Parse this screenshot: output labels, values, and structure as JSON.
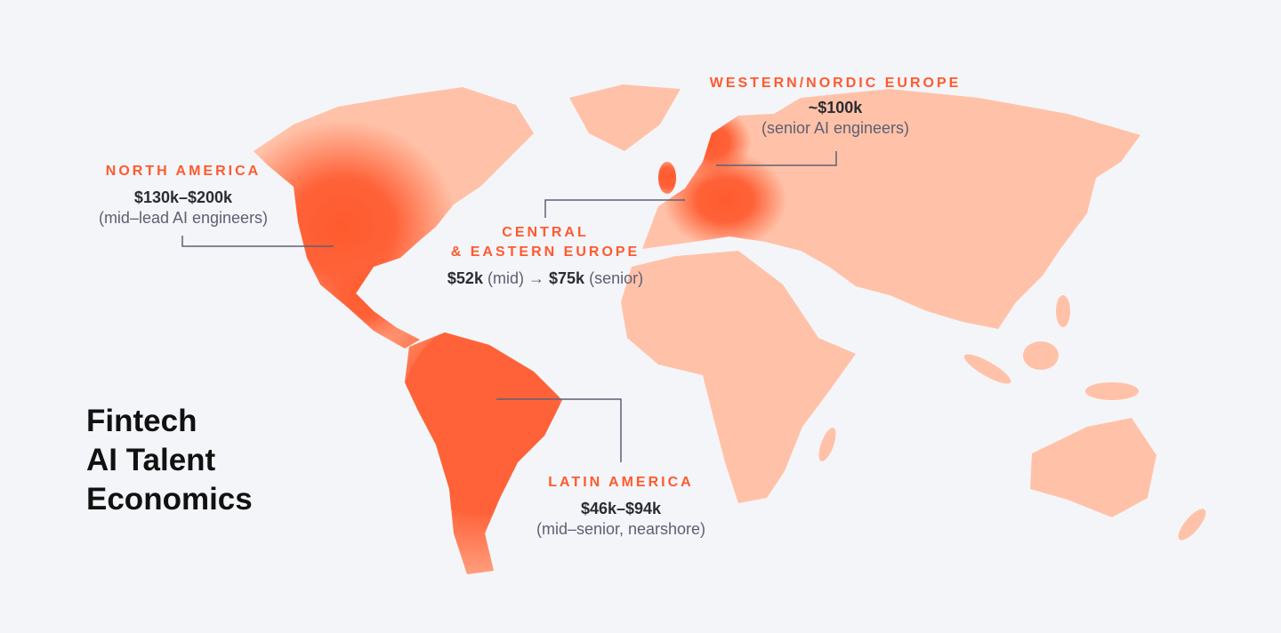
{
  "title": {
    "lines": [
      "Fintech",
      "AI Talent",
      "Economics"
    ]
  },
  "colors": {
    "background": "#f4f5f9",
    "land": "#ffc2a8",
    "highlight": "#ff6238",
    "label": "#ff5a2e",
    "leader_line": "#5e6072"
  },
  "regions": [
    {
      "id": "north-america",
      "name": "NORTH AMERICA",
      "salary": "$130k–$200k",
      "note": "(mid–lead AI engineers)"
    },
    {
      "id": "western-nordic-europe",
      "name": "WESTERN/NORDIC EUROPE",
      "salary": "~$100k",
      "note": "(senior AI engineers)"
    },
    {
      "id": "central-eastern-europe",
      "name_lines": [
        "CENTRAL",
        "& EASTERN EUROPE"
      ],
      "salary_mid": "$52k",
      "mid_note": "(mid)",
      "arrow": "→",
      "salary_senior": "$75k",
      "senior_note": "(senior)"
    },
    {
      "id": "latin-america",
      "name": "LATIN AMERICA",
      "salary": "$46k–$94k",
      "note": "(mid–senior, nearshore)"
    }
  ]
}
